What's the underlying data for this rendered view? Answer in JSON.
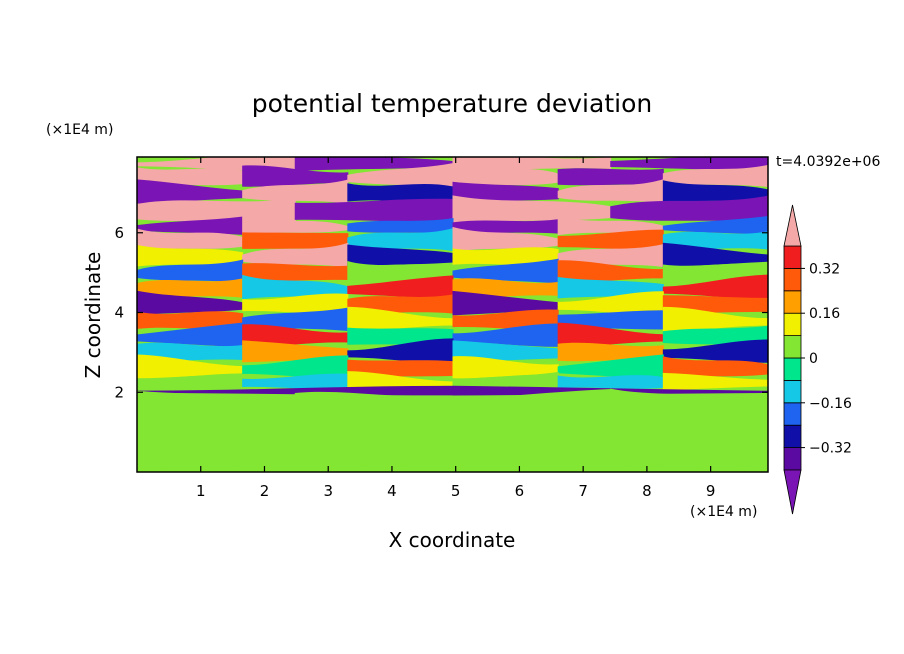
{
  "chart_data": {
    "type": "heatmap",
    "title": "potential temperature deviation",
    "xlabel": "X coordinate",
    "ylabel": "Z coordinate",
    "x_unit": "(×1E4 m)",
    "y_unit": "(×1E4 m)",
    "time_label": "t=4.0392e+06",
    "xlim": [
      0,
      9.9
    ],
    "ylim": [
      0,
      7.9
    ],
    "x_ticks": [
      1,
      2,
      3,
      4,
      5,
      6,
      7,
      8,
      9
    ],
    "y_ticks": [
      2,
      4,
      6
    ],
    "colorbar": {
      "levels": [
        -0.4,
        -0.32,
        -0.24,
        -0.16,
        -0.08,
        0,
        0.08,
        0.16,
        0.24,
        0.32,
        0.4
      ],
      "tick_labels": [
        "0.32",
        "0.16",
        "0",
        "−0.16",
        "−0.32"
      ],
      "tick_values": [
        0.32,
        0.16,
        0,
        -0.16,
        -0.32
      ],
      "colors": [
        "#7a14b4",
        "#5a0aa0",
        "#1010a8",
        "#1e64f0",
        "#14c8e6",
        "#00e68c",
        "#82e632",
        "#f0f000",
        "#ffa000",
        "#ff5a0a",
        "#f01e1e",
        "#f4a8a8"
      ]
    },
    "bands": [
      {
        "z": [
          7.6,
          7.9
        ],
        "values": [
          0.42,
          -0.42
        ]
      },
      {
        "z": [
          7.2,
          7.6
        ],
        "values": [
          0.42,
          -0.42,
          0.4
        ]
      },
      {
        "z": [
          6.8,
          7.2
        ],
        "values": [
          -0.42,
          0.42,
          -0.3
        ]
      },
      {
        "z": [
          6.3,
          6.8
        ],
        "values": [
          0.42,
          -0.42
        ]
      },
      {
        "z": [
          6.0,
          6.3
        ],
        "values": [
          -0.42,
          0.42,
          -0.2
        ]
      },
      {
        "z": [
          5.6,
          6.0
        ],
        "values": [
          0.42,
          0.3,
          -0.1
        ]
      },
      {
        "z": [
          5.2,
          5.6
        ],
        "values": [
          0.1,
          0.42,
          -0.3
        ]
      },
      {
        "z": [
          4.8,
          5.2
        ],
        "values": [
          -0.2,
          0.3,
          0.05
        ]
      },
      {
        "z": [
          4.4,
          4.8
        ],
        "values": [
          0.2,
          -0.1,
          0.35
        ]
      },
      {
        "z": [
          4.0,
          4.4
        ],
        "values": [
          -0.38,
          0.1,
          0.3
        ]
      },
      {
        "z": [
          3.6,
          4.0
        ],
        "values": [
          0.3,
          -0.2,
          0.1
        ]
      },
      {
        "z": [
          3.2,
          3.6
        ],
        "values": [
          -0.2,
          0.32,
          -0.05
        ]
      },
      {
        "z": [
          2.8,
          3.2
        ],
        "values": [
          -0.12,
          0.2,
          -0.3
        ]
      },
      {
        "z": [
          2.4,
          2.8
        ],
        "values": [
          0.15,
          -0.05,
          0.25
        ]
      },
      {
        "z": [
          2.1,
          2.4
        ],
        "values": [
          0.05,
          -0.15,
          0.12
        ]
      },
      {
        "z": [
          1.95,
          2.1
        ],
        "values": [
          -0.4
        ]
      },
      {
        "z": [
          0,
          1.95
        ],
        "values": [
          0.06,
          0.02
        ]
      }
    ]
  }
}
